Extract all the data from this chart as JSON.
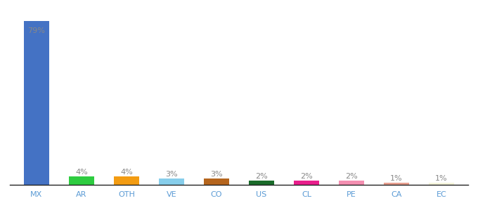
{
  "categories": [
    "MX",
    "AR",
    "OTH",
    "VE",
    "CO",
    "US",
    "CL",
    "PE",
    "CA",
    "EC"
  ],
  "values": [
    79,
    4,
    4,
    3,
    3,
    2,
    2,
    2,
    1,
    1
  ],
  "bar_colors": [
    "#4472c4",
    "#2ecc40",
    "#f39c12",
    "#87ceeb",
    "#b5651d",
    "#1a6b2a",
    "#e91e8c",
    "#f48fb1",
    "#e8a090",
    "#f5f5dc"
  ],
  "labels": [
    "79%",
    "4%",
    "4%",
    "3%",
    "3%",
    "2%",
    "2%",
    "2%",
    "1%",
    "1%"
  ],
  "label_color": "#888888",
  "label_fontsize": 8,
  "tick_fontsize": 8,
  "tick_color": "#5b9bd5",
  "background_color": "#ffffff",
  "ylim": [
    0,
    86
  ]
}
